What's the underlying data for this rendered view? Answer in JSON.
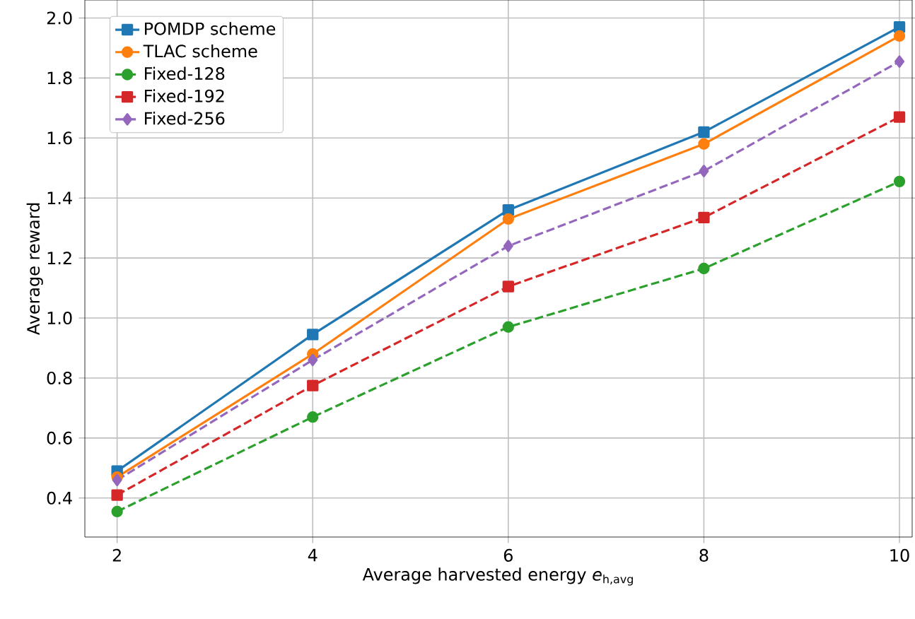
{
  "chart_data": {
    "type": "line",
    "xlabel": "Average harvested energy *e*$_{h,avg}$",
    "ylabel": "Average reward",
    "x": [
      2,
      4,
      6,
      8,
      10
    ],
    "xlim": [
      1.67,
      10.13
    ],
    "ylim": [
      0.27,
      2.06
    ],
    "xticks": [
      2,
      4,
      6,
      8,
      10
    ],
    "yticks": [
      0.4,
      0.6,
      0.8,
      {
        "value": 1.0,
        "label": "1.0"
      },
      1.2,
      1.4,
      1.6,
      1.8,
      {
        "value": 2.0,
        "label": "2.0"
      }
    ],
    "grid": true,
    "legend": "top left",
    "series": [
      {
        "name": "POMDP scheme",
        "color": "#1f77b4",
        "marker": "square",
        "line_style": "solid",
        "values": [
          0.49,
          0.945,
          1.36,
          1.62,
          1.97
        ]
      },
      {
        "name": "TLAC scheme",
        "color": "#ff7f0e",
        "marker": "circle",
        "line_style": "solid",
        "values": [
          0.47,
          0.88,
          1.33,
          1.58,
          1.94
        ]
      },
      {
        "name": "Fixed-128",
        "color": "#2ca02c",
        "marker": "circle",
        "line_style": "dashed",
        "values": [
          0.355,
          0.67,
          0.97,
          1.165,
          1.455
        ]
      },
      {
        "name": "Fixed-192",
        "color": "#d62728",
        "marker": "square",
        "line_style": "dashed",
        "values": [
          0.41,
          0.775,
          1.105,
          1.335,
          1.67
        ]
      },
      {
        "name": "Fixed-256",
        "color": "#9467bd",
        "marker": "diamond",
        "line_style": "dashed",
        "values": [
          0.46,
          0.86,
          1.24,
          1.49,
          1.855
        ]
      }
    ]
  }
}
